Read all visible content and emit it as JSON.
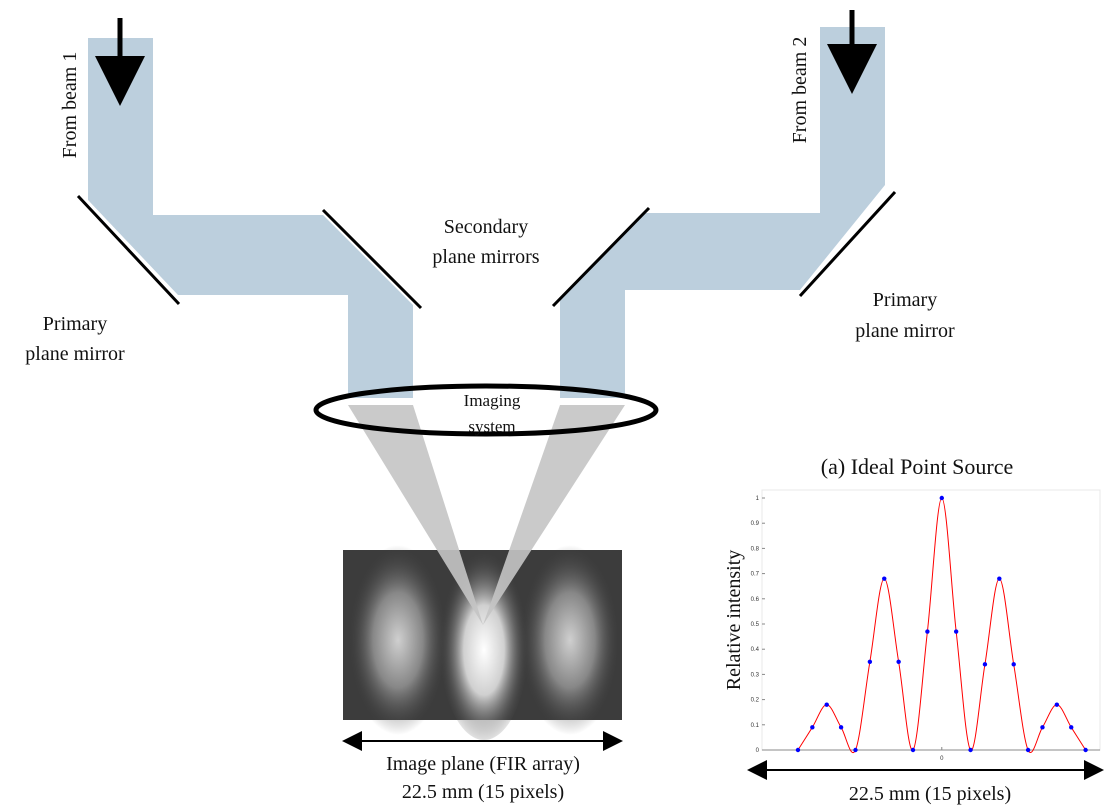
{
  "diagram": {
    "beam_labels": [
      "From beam 1",
      "From beam 2"
    ],
    "secondary_mirror_label": [
      "Secondary",
      "plane mirrors"
    ],
    "primary_mirror_labels": [
      [
        "Primary",
        "plane mirror"
      ],
      [
        "Primary",
        "plane mirror"
      ]
    ],
    "imaging_label": [
      "Imaging",
      "system"
    ],
    "image_plane_label": [
      "Image plane (FIR array)",
      "22.5 mm (15 pixels)"
    ]
  },
  "chart_data": {
    "type": "line",
    "title": "(a) Ideal Point Source",
    "y_label": "Relative intensity",
    "x_label": "22.5 mm (15 pixels)",
    "x": [
      -10,
      -9,
      -8,
      -7,
      -6,
      -5,
      -4,
      -3,
      -2,
      -1,
      0,
      1,
      2,
      3,
      4,
      5,
      6,
      7,
      8,
      9,
      10
    ],
    "series": [
      {
        "color": "#ff0000",
        "marker_color": "#0000ff",
        "values": [
          0,
          0.09,
          0.18,
          0.09,
          0,
          0.35,
          0.68,
          0.35,
          0,
          0.47,
          1,
          0.47,
          0,
          0.34,
          0.68,
          0.34,
          0,
          0.09,
          0.18,
          0.09,
          0
        ]
      }
    ],
    "xlim": [
      -12.5,
      11
    ],
    "ylim": [
      0,
      1
    ],
    "xticks": [
      0
    ],
    "yticks": [
      0,
      0.1,
      0.2,
      0.3,
      0.4,
      0.5,
      0.6,
      0.7,
      0.8,
      0.9,
      1
    ]
  }
}
